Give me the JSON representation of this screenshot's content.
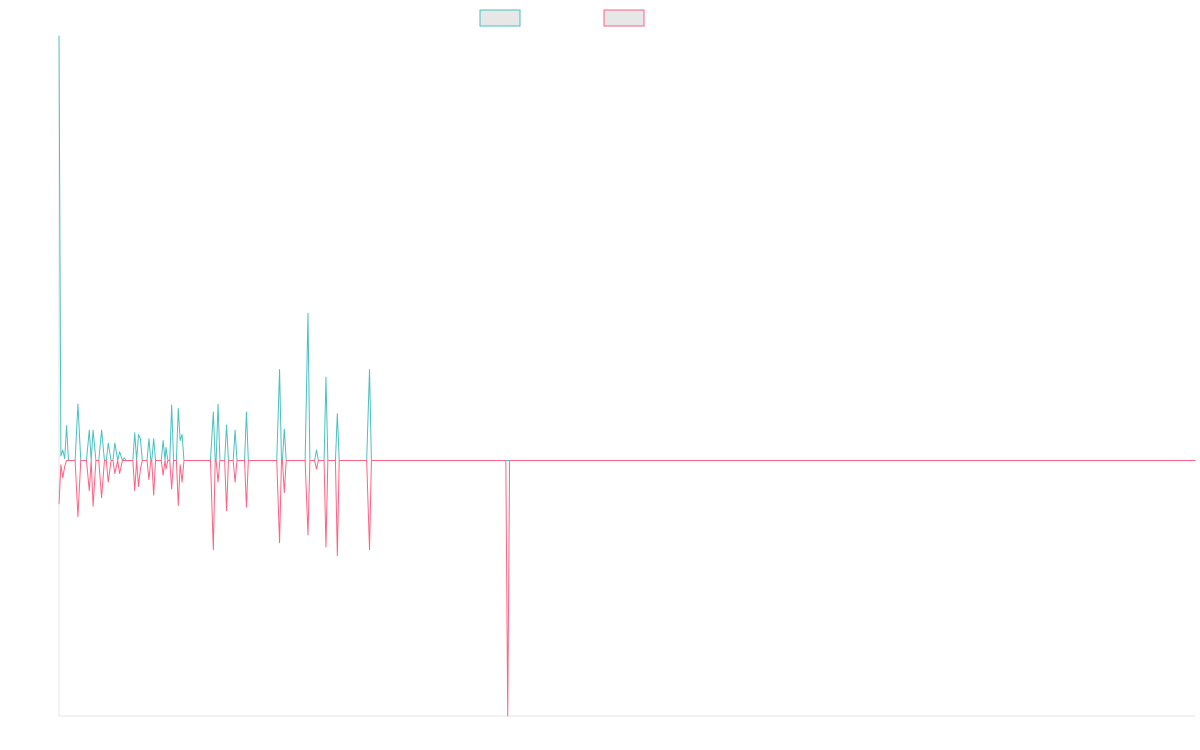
{
  "chart_data": {
    "type": "line",
    "title": "",
    "xlabel": "",
    "ylabel": "",
    "legend_position": "top-center",
    "grid": false,
    "ylim": [
      -2.95,
      4.9
    ],
    "series": [
      {
        "name": "",
        "color": "#4bc0c0",
        "points": [
          [
            0,
            4.9
          ],
          [
            2,
            0.05
          ],
          [
            4,
            0.12
          ],
          [
            6,
            0.02
          ],
          [
            8,
            0.4
          ],
          [
            10,
            0.0
          ],
          [
            12,
            0.0
          ],
          [
            17,
            0.0
          ],
          [
            20,
            0.65
          ],
          [
            23,
            0.0
          ],
          [
            29,
            0.0
          ],
          [
            32,
            0.35
          ],
          [
            34,
            0.0
          ],
          [
            36,
            0.35
          ],
          [
            39,
            0.0
          ],
          [
            42,
            0.0
          ],
          [
            45,
            0.35
          ],
          [
            48,
            0.0
          ],
          [
            50,
            0.0
          ],
          [
            52,
            0.2
          ],
          [
            55,
            0.0
          ],
          [
            57,
            0.0
          ],
          [
            59,
            0.2
          ],
          [
            62,
            0.0
          ],
          [
            64,
            0.1
          ],
          [
            67,
            0.0
          ],
          [
            69,
            0.03
          ],
          [
            71,
            0.0
          ],
          [
            73,
            0.0
          ],
          [
            78,
            0.0
          ],
          [
            80,
            0.32
          ],
          [
            82,
            0.0
          ],
          [
            84,
            0.3
          ],
          [
            86,
            0.25
          ],
          [
            88,
            0.0
          ],
          [
            90,
            0.0
          ],
          [
            93,
            0.0
          ],
          [
            95,
            0.25
          ],
          [
            97,
            0.0
          ],
          [
            98,
            0.0
          ],
          [
            100,
            0.25
          ],
          [
            102,
            0.0
          ],
          [
            105,
            0.0
          ],
          [
            108,
            0.0
          ],
          [
            110,
            0.23
          ],
          [
            112,
            0.0
          ],
          [
            113,
            0.15
          ],
          [
            115,
            0.0
          ],
          [
            117,
            0.0
          ],
          [
            119,
            0.64
          ],
          [
            121,
            0.0
          ],
          [
            124,
            0.0
          ],
          [
            126,
            0.6
          ],
          [
            128,
            0.23
          ],
          [
            130,
            0.3
          ],
          [
            132,
            0.0
          ],
          [
            135,
            0.0
          ],
          [
            160,
            0.0
          ],
          [
            163,
            0.56
          ],
          [
            165,
            0.0
          ],
          [
            166,
            0.0
          ],
          [
            168,
            0.65
          ],
          [
            170,
            0.0
          ],
          [
            175,
            0.0
          ],
          [
            177,
            0.41
          ],
          [
            179,
            0.0
          ],
          [
            184,
            0.0
          ],
          [
            186,
            0.35
          ],
          [
            188,
            0.0
          ],
          [
            196,
            0.0
          ],
          [
            198,
            0.56
          ],
          [
            200,
            0.0
          ],
          [
            230,
            0.0
          ],
          [
            233,
            1.05
          ],
          [
            235,
            0.0
          ],
          [
            236,
            0.0
          ],
          [
            238,
            0.36
          ],
          [
            240,
            0.0
          ],
          [
            260,
            0.0
          ],
          [
            263,
            1.7
          ],
          [
            265,
            0.0
          ],
          [
            270,
            0.0
          ],
          [
            272,
            0.12
          ],
          [
            274,
            0.0
          ],
          [
            277,
            0.0
          ],
          [
            280,
            0.0
          ],
          [
            282,
            0.96
          ],
          [
            284,
            0.0
          ],
          [
            288,
            0.0
          ],
          [
            292,
            0.0
          ],
          [
            294,
            0.54
          ],
          [
            296,
            0.0
          ],
          [
            325,
            0.0
          ],
          [
            328,
            1.05
          ],
          [
            330,
            0.0
          ],
          [
            400,
            0.0
          ],
          [
            472,
            0.0
          ],
          [
            528,
            0.0
          ],
          [
            530,
            0.0
          ],
          [
            1200,
            0.0
          ]
        ]
      },
      {
        "name": "",
        "color": "#ff6384",
        "points": [
          [
            0,
            -0.5
          ],
          [
            2,
            -0.05
          ],
          [
            4,
            -0.2
          ],
          [
            6,
            -0.07
          ],
          [
            8,
            0.0
          ],
          [
            10,
            0.0
          ],
          [
            12,
            0.0
          ],
          [
            17,
            0.0
          ],
          [
            20,
            -0.65
          ],
          [
            23,
            0.0
          ],
          [
            29,
            0.0
          ],
          [
            32,
            -0.35
          ],
          [
            34,
            0.0
          ],
          [
            36,
            -0.53
          ],
          [
            39,
            0.0
          ],
          [
            42,
            0.0
          ],
          [
            45,
            -0.43
          ],
          [
            48,
            0.0
          ],
          [
            50,
            0.0
          ],
          [
            52,
            -0.25
          ],
          [
            55,
            0.0
          ],
          [
            57,
            0.0
          ],
          [
            59,
            -0.15
          ],
          [
            62,
            0.0
          ],
          [
            64,
            -0.15
          ],
          [
            67,
            0.0
          ],
          [
            69,
            0.0
          ],
          [
            71,
            0.0
          ],
          [
            73,
            0.0
          ],
          [
            78,
            0.0
          ],
          [
            80,
            -0.35
          ],
          [
            82,
            0.0
          ],
          [
            84,
            -0.3
          ],
          [
            86,
            -0.1
          ],
          [
            88,
            0.0
          ],
          [
            90,
            0.0
          ],
          [
            93,
            0.0
          ],
          [
            95,
            -0.22
          ],
          [
            97,
            0.0
          ],
          [
            98,
            0.0
          ],
          [
            100,
            -0.4
          ],
          [
            102,
            0.0
          ],
          [
            105,
            0.0
          ],
          [
            108,
            0.0
          ],
          [
            110,
            -0.17
          ],
          [
            112,
            0.0
          ],
          [
            113,
            -0.1
          ],
          [
            115,
            0.0
          ],
          [
            117,
            0.0
          ],
          [
            119,
            -0.33
          ],
          [
            121,
            0.0
          ],
          [
            124,
            0.0
          ],
          [
            126,
            -0.52
          ],
          [
            128,
            -0.05
          ],
          [
            130,
            -0.25
          ],
          [
            132,
            0.0
          ],
          [
            135,
            0.0
          ],
          [
            160,
            0.0
          ],
          [
            163,
            -1.03
          ],
          [
            165,
            0.0
          ],
          [
            166,
            0.0
          ],
          [
            168,
            -0.25
          ],
          [
            170,
            0.0
          ],
          [
            175,
            0.0
          ],
          [
            177,
            -0.58
          ],
          [
            179,
            0.0
          ],
          [
            184,
            0.0
          ],
          [
            186,
            -0.25
          ],
          [
            188,
            0.0
          ],
          [
            196,
            0.0
          ],
          [
            198,
            -0.54
          ],
          [
            200,
            0.0
          ],
          [
            230,
            0.0
          ],
          [
            233,
            -0.95
          ],
          [
            235,
            0.0
          ],
          [
            236,
            0.0
          ],
          [
            238,
            -0.37
          ],
          [
            240,
            0.0
          ],
          [
            260,
            0.0
          ],
          [
            263,
            -0.86
          ],
          [
            265,
            0.0
          ],
          [
            270,
            0.0
          ],
          [
            272,
            -0.1
          ],
          [
            274,
            0.0
          ],
          [
            277,
            0.0
          ],
          [
            280,
            0.0
          ],
          [
            282,
            -1.0
          ],
          [
            284,
            0.0
          ],
          [
            288,
            0.0
          ],
          [
            292,
            0.0
          ],
          [
            294,
            -1.1
          ],
          [
            296,
            0.0
          ],
          [
            325,
            0.0
          ],
          [
            328,
            -1.03
          ],
          [
            330,
            0.0
          ],
          [
            400,
            0.0
          ],
          [
            470,
            0.0
          ],
          [
            472,
            0.0
          ],
          [
            474,
            -2.95
          ],
          [
            476,
            0.0
          ],
          [
            478,
            0.0
          ],
          [
            1200,
            0.0
          ]
        ]
      }
    ]
  }
}
